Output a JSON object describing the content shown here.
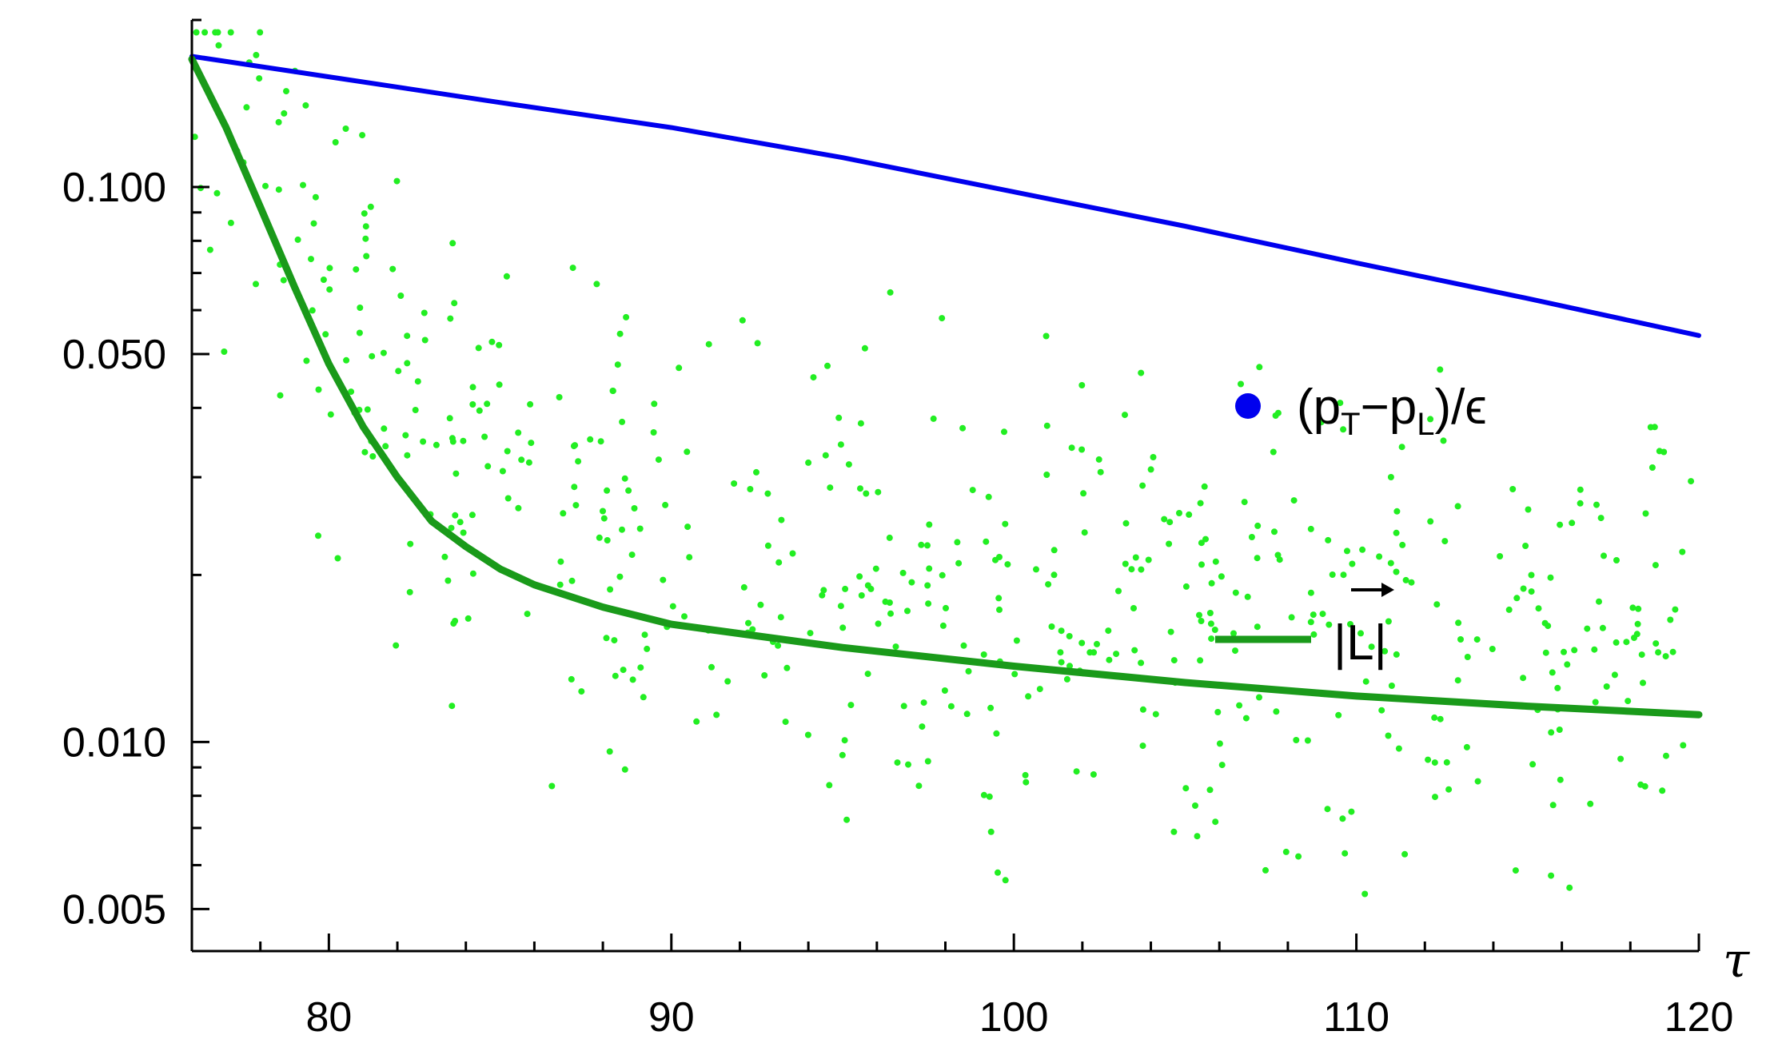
{
  "chart_data": {
    "type": "line",
    "xlabel": "τ",
    "ylabel": "",
    "title": "",
    "xlim": [
      76,
      120
    ],
    "ylim": [
      0.0042,
      0.2
    ],
    "y_scale": "log",
    "grid": false,
    "legend_placement": "right-center",
    "x_ticks": [
      80,
      90,
      100,
      110,
      120
    ],
    "y_ticks": [
      0.005,
      0.01,
      0.05,
      0.1
    ],
    "x_tick_labels": [
      "80",
      "90",
      "100",
      "110",
      "120"
    ],
    "y_tick_labels": [
      "0.005",
      "0.010",
      "0.050",
      "0.100"
    ],
    "series": [
      {
        "style": "line",
        "color": "#0000ee",
        "x": [
          76,
          80,
          85,
          90,
          95,
          100,
          105,
          110,
          115,
          120
        ],
        "y": [
          0.172,
          0.158,
          0.142,
          0.128,
          0.113,
          0.098,
          0.085,
          0.073,
          0.063,
          0.054
        ]
      },
      {
        "style": "line",
        "color": "#1a9a1a",
        "x": [
          76,
          77,
          78,
          79,
          80,
          81,
          82,
          83,
          84,
          85,
          86,
          88,
          90,
          95,
          100,
          105,
          110,
          115,
          120
        ],
        "y": [
          0.17,
          0.128,
          0.092,
          0.066,
          0.048,
          0.037,
          0.03,
          0.025,
          0.0225,
          0.0205,
          0.0192,
          0.0175,
          0.0163,
          0.0148,
          0.0137,
          0.0128,
          0.0121,
          0.0116,
          0.0112
        ]
      },
      {
        "style": "scatter",
        "color": "#22ee22"
      }
    ],
    "legend": [
      {
        "label": "(p",
        "sub1": "T",
        "mid": "−p",
        "sub2": "L",
        "tail": ")/ϵ",
        "marker": "dot",
        "color": "#0000ee"
      },
      {
        "label": "|L|",
        "marker": "line",
        "color": "#1a9a1a"
      }
    ]
  }
}
